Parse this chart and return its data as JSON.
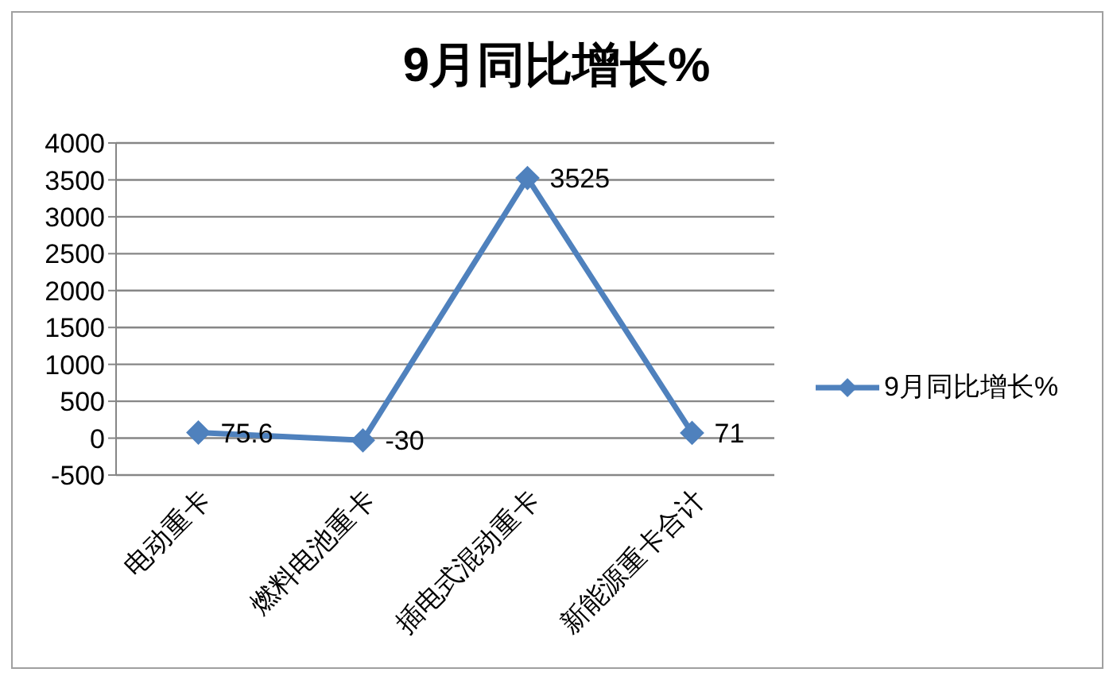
{
  "chart_data": {
    "type": "line",
    "title": "9月同比增长%",
    "categories": [
      "电动重卡",
      "燃料电池重卡",
      "插电式混动重卡",
      "新能源重卡合计"
    ],
    "series": [
      {
        "name": "9月同比增长%",
        "color": "#4f81bd",
        "values": [
          75.6,
          -30,
          3525,
          71
        ]
      }
    ],
    "ylim": [
      -500,
      4000
    ],
    "yticks": [
      -500,
      0,
      500,
      1000,
      1500,
      2000,
      2500,
      3000,
      3500,
      4000
    ],
    "grid": "y",
    "legend": "right",
    "marker": "diamond",
    "line_style": "solid",
    "data_labels": true
  }
}
